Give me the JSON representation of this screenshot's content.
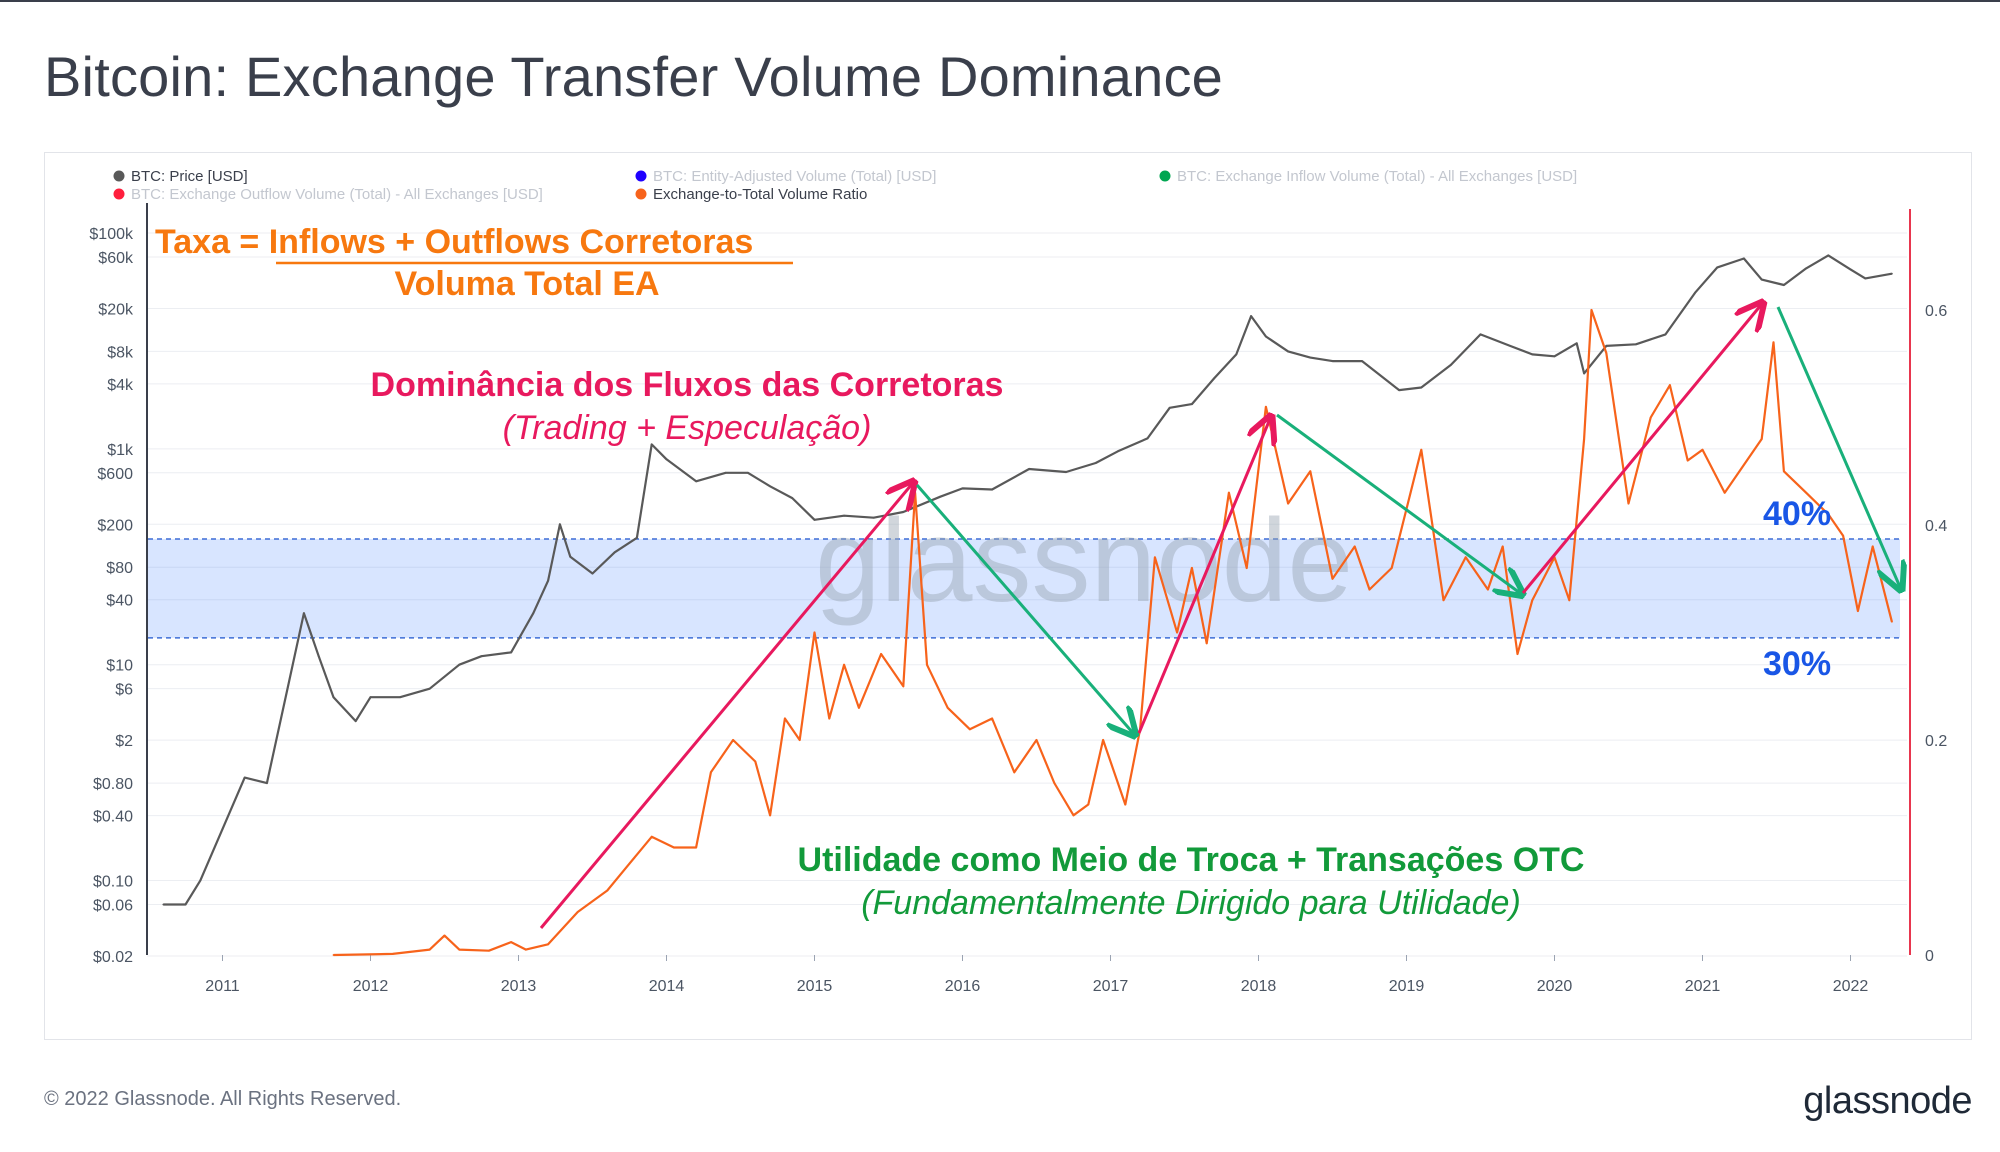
{
  "page": {
    "title": "Bitcoin: Exchange Transfer Volume Dominance",
    "copyright": "© 2022 Glassnode. All Rights Reserved.",
    "logo": "glassnode",
    "watermark": "glassnode"
  },
  "legend": {
    "items": [
      {
        "label": "BTC: Price [USD]",
        "color": "#595959",
        "active": true
      },
      {
        "label": "BTC: Entity-Adjusted Volume (Total) [USD]",
        "color": "#1f00ff",
        "active": false
      },
      {
        "label": "BTC: Exchange Inflow Volume (Total) - All Exchanges [USD]",
        "color": "#00a651",
        "active": false
      },
      {
        "label": "BTC: Exchange Outflow Volume (Total) - All Exchanges [USD]",
        "color": "#ff1f3d",
        "active": false
      },
      {
        "label": "Exchange-to-Total Volume Ratio",
        "color": "#f7631b",
        "active": true
      }
    ]
  },
  "annotations": {
    "formula_prefix": "Taxa = ",
    "formula_numerator": "Inflows + Outflows Corretoras",
    "formula_denominator": "Voluma Total EA",
    "exchange_title": "Dominância dos Fluxos das Corretoras",
    "exchange_subtitle": "(Trading + Especulação)",
    "utility_title": "Utilidade como Meio de Troca  + Transações OTC",
    "utility_subtitle": "(Fundamentalmente Dirigido para Utilidade)",
    "upper_band_label": "40%",
    "lower_band_label": "30%",
    "colors": {
      "formula": "#f7780f",
      "exchange": "#e8195e",
      "utility": "#129a3a",
      "band": "#1956e6"
    }
  },
  "chart_data": {
    "type": "line",
    "x_ticks": [
      "2011",
      "2012",
      "2013",
      "2014",
      "2015",
      "2016",
      "2017",
      "2018",
      "2019",
      "2020",
      "2021",
      "2022"
    ],
    "y_left_ticks": [
      "$100k",
      "$60k",
      "$20k",
      "$8k",
      "$4k",
      "$1k",
      "$600",
      "$200",
      "$80",
      "$40",
      "$10",
      "$6",
      "$2",
      "$0.80",
      "$0.40",
      "$0.10",
      "$0.06",
      "$0.02"
    ],
    "y_left_scale": "log",
    "y_right_ticks": [
      "0.6",
      "0.4",
      "0.2",
      "0"
    ],
    "y_right_range": [
      0,
      0.67
    ],
    "band": {
      "lower": 0.295,
      "upper": 0.387,
      "color": "#3d7bff"
    },
    "series": [
      {
        "name": "BTC: Price [USD]",
        "axis": "left",
        "color": "#595959",
        "points": [
          [
            2010.6,
            0.06
          ],
          [
            2010.75,
            0.06
          ],
          [
            2010.85,
            0.1
          ],
          [
            2011.0,
            0.3
          ],
          [
            2011.15,
            0.9
          ],
          [
            2011.3,
            0.8
          ],
          [
            2011.45,
            7
          ],
          [
            2011.55,
            30
          ],
          [
            2011.65,
            12
          ],
          [
            2011.75,
            5
          ],
          [
            2011.9,
            3
          ],
          [
            2012.0,
            5
          ],
          [
            2012.2,
            5
          ],
          [
            2012.4,
            6
          ],
          [
            2012.6,
            10
          ],
          [
            2012.75,
            12
          ],
          [
            2012.95,
            13
          ],
          [
            2013.1,
            30
          ],
          [
            2013.2,
            60
          ],
          [
            2013.28,
            200
          ],
          [
            2013.35,
            100
          ],
          [
            2013.5,
            70
          ],
          [
            2013.65,
            110
          ],
          [
            2013.8,
            150
          ],
          [
            2013.9,
            1100
          ],
          [
            2014.0,
            800
          ],
          [
            2014.2,
            500
          ],
          [
            2014.4,
            600
          ],
          [
            2014.55,
            600
          ],
          [
            2014.7,
            450
          ],
          [
            2014.85,
            350
          ],
          [
            2015.0,
            220
          ],
          [
            2015.2,
            240
          ],
          [
            2015.4,
            230
          ],
          [
            2015.6,
            260
          ],
          [
            2015.85,
            360
          ],
          [
            2016.0,
            430
          ],
          [
            2016.2,
            420
          ],
          [
            2016.45,
            650
          ],
          [
            2016.7,
            610
          ],
          [
            2016.9,
            740
          ],
          [
            2017.05,
            950
          ],
          [
            2017.25,
            1250
          ],
          [
            2017.4,
            2400
          ],
          [
            2017.55,
            2600
          ],
          [
            2017.7,
            4500
          ],
          [
            2017.85,
            7500
          ],
          [
            2017.95,
            17000
          ],
          [
            2018.05,
            11000
          ],
          [
            2018.2,
            8000
          ],
          [
            2018.35,
            7000
          ],
          [
            2018.5,
            6500
          ],
          [
            2018.7,
            6500
          ],
          [
            2018.95,
            3500
          ],
          [
            2019.1,
            3700
          ],
          [
            2019.3,
            6000
          ],
          [
            2019.5,
            11500
          ],
          [
            2019.7,
            9000
          ],
          [
            2019.85,
            7500
          ],
          [
            2020.0,
            7200
          ],
          [
            2020.15,
            9500
          ],
          [
            2020.2,
            5000
          ],
          [
            2020.35,
            9000
          ],
          [
            2020.55,
            9300
          ],
          [
            2020.75,
            11500
          ],
          [
            2020.95,
            28000
          ],
          [
            2021.1,
            48000
          ],
          [
            2021.28,
            58000
          ],
          [
            2021.4,
            37000
          ],
          [
            2021.55,
            33000
          ],
          [
            2021.7,
            47000
          ],
          [
            2021.85,
            62000
          ],
          [
            2022.0,
            46000
          ],
          [
            2022.1,
            38000
          ],
          [
            2022.28,
            42000
          ]
        ]
      },
      {
        "name": "Exchange-to-Total Volume Ratio",
        "axis": "right",
        "color": "#f7631b",
        "points": [
          [
            2011.75,
            0.0
          ],
          [
            2012.15,
            0.001
          ],
          [
            2012.4,
            0.005
          ],
          [
            2012.5,
            0.018
          ],
          [
            2012.6,
            0.005
          ],
          [
            2012.8,
            0.004
          ],
          [
            2012.95,
            0.012
          ],
          [
            2013.05,
            0.005
          ],
          [
            2013.2,
            0.01
          ],
          [
            2013.4,
            0.04
          ],
          [
            2013.6,
            0.06
          ],
          [
            2013.75,
            0.085
          ],
          [
            2013.9,
            0.11
          ],
          [
            2014.05,
            0.1
          ],
          [
            2014.2,
            0.1
          ],
          [
            2014.3,
            0.17
          ],
          [
            2014.45,
            0.2
          ],
          [
            2014.6,
            0.18
          ],
          [
            2014.7,
            0.13
          ],
          [
            2014.8,
            0.22
          ],
          [
            2014.9,
            0.2
          ],
          [
            2015.0,
            0.3
          ],
          [
            2015.1,
            0.22
          ],
          [
            2015.2,
            0.27
          ],
          [
            2015.3,
            0.23
          ],
          [
            2015.45,
            0.28
          ],
          [
            2015.6,
            0.25
          ],
          [
            2015.68,
            0.43
          ],
          [
            2015.76,
            0.27
          ],
          [
            2015.9,
            0.23
          ],
          [
            2016.05,
            0.21
          ],
          [
            2016.2,
            0.22
          ],
          [
            2016.35,
            0.17
          ],
          [
            2016.5,
            0.2
          ],
          [
            2016.62,
            0.16
          ],
          [
            2016.75,
            0.13
          ],
          [
            2016.85,
            0.14
          ],
          [
            2016.95,
            0.2
          ],
          [
            2017.1,
            0.14
          ],
          [
            2017.2,
            0.21
          ],
          [
            2017.3,
            0.37
          ],
          [
            2017.45,
            0.3
          ],
          [
            2017.55,
            0.36
          ],
          [
            2017.65,
            0.29
          ],
          [
            2017.8,
            0.43
          ],
          [
            2017.92,
            0.36
          ],
          [
            2018.05,
            0.51
          ],
          [
            2018.2,
            0.42
          ],
          [
            2018.35,
            0.45
          ],
          [
            2018.5,
            0.35
          ],
          [
            2018.65,
            0.38
          ],
          [
            2018.75,
            0.34
          ],
          [
            2018.9,
            0.36
          ],
          [
            2019.1,
            0.47
          ],
          [
            2019.25,
            0.33
          ],
          [
            2019.4,
            0.37
          ],
          [
            2019.55,
            0.34
          ],
          [
            2019.65,
            0.38
          ],
          [
            2019.75,
            0.28
          ],
          [
            2019.85,
            0.33
          ],
          [
            2020.0,
            0.37
          ],
          [
            2020.1,
            0.33
          ],
          [
            2020.2,
            0.48
          ],
          [
            2020.25,
            0.6
          ],
          [
            2020.35,
            0.56
          ],
          [
            2020.5,
            0.42
          ],
          [
            2020.65,
            0.5
          ],
          [
            2020.78,
            0.53
          ],
          [
            2020.9,
            0.46
          ],
          [
            2021.0,
            0.47
          ],
          [
            2021.15,
            0.43
          ],
          [
            2021.3,
            0.46
          ],
          [
            2021.4,
            0.48
          ],
          [
            2021.48,
            0.57
          ],
          [
            2021.55,
            0.45
          ],
          [
            2021.7,
            0.43
          ],
          [
            2021.85,
            0.41
          ],
          [
            2021.95,
            0.39
          ],
          [
            2022.05,
            0.32
          ],
          [
            2022.15,
            0.38
          ],
          [
            2022.28,
            0.31
          ]
        ]
      }
    ]
  }
}
